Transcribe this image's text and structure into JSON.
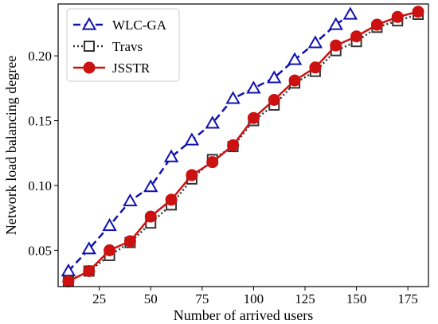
{
  "chart_data": {
    "type": "line",
    "xlabel": "Number of arrived users",
    "ylabel": "Network load balancing degree",
    "xlim": [
      5,
      185
    ],
    "ylim": [
      0.022,
      0.24
    ],
    "xticks": [
      25,
      50,
      75,
      100,
      125,
      150,
      175
    ],
    "yticks": [
      0.05,
      0.1,
      0.15,
      0.2
    ],
    "ytick_labels": [
      "0.05",
      "0.10",
      "0.15",
      "0.20"
    ],
    "xtick_labels": [
      "25",
      "50",
      "75",
      "100",
      "125",
      "150",
      "175"
    ],
    "grid": false,
    "legend_position": "top-left",
    "series": [
      {
        "name": "WLC-GA",
        "color": "#1010b0",
        "line_style": "dashed",
        "marker": "triangle-open",
        "x": [
          10,
          20,
          30,
          40,
          50,
          60,
          70,
          80,
          90,
          100,
          110,
          120,
          130,
          140,
          147
        ],
        "y": [
          0.034,
          0.051,
          0.069,
          0.088,
          0.099,
          0.122,
          0.135,
          0.148,
          0.167,
          0.175,
          0.183,
          0.197,
          0.21,
          0.224,
          0.232
        ]
      },
      {
        "name": "Travs",
        "color": "#333333",
        "line_style": "dotted",
        "marker": "square-open",
        "x": [
          10,
          20,
          30,
          40,
          50,
          60,
          70,
          80,
          90,
          100,
          110,
          120,
          130,
          140,
          150,
          160,
          170,
          180
        ],
        "y": [
          0.026,
          0.034,
          0.046,
          0.056,
          0.071,
          0.085,
          0.105,
          0.12,
          0.13,
          0.15,
          0.162,
          0.179,
          0.188,
          0.204,
          0.211,
          0.222,
          0.227,
          0.232
        ]
      },
      {
        "name": "JSSTR",
        "color": "#cc1111",
        "line_style": "solid",
        "marker": "circle-filled",
        "x": [
          10,
          20,
          30,
          40,
          50,
          60,
          70,
          80,
          90,
          100,
          110,
          120,
          130,
          140,
          150,
          160,
          170,
          180
        ],
        "y": [
          0.026,
          0.034,
          0.05,
          0.057,
          0.076,
          0.089,
          0.108,
          0.118,
          0.131,
          0.152,
          0.166,
          0.181,
          0.191,
          0.208,
          0.215,
          0.224,
          0.23,
          0.234
        ]
      }
    ]
  }
}
